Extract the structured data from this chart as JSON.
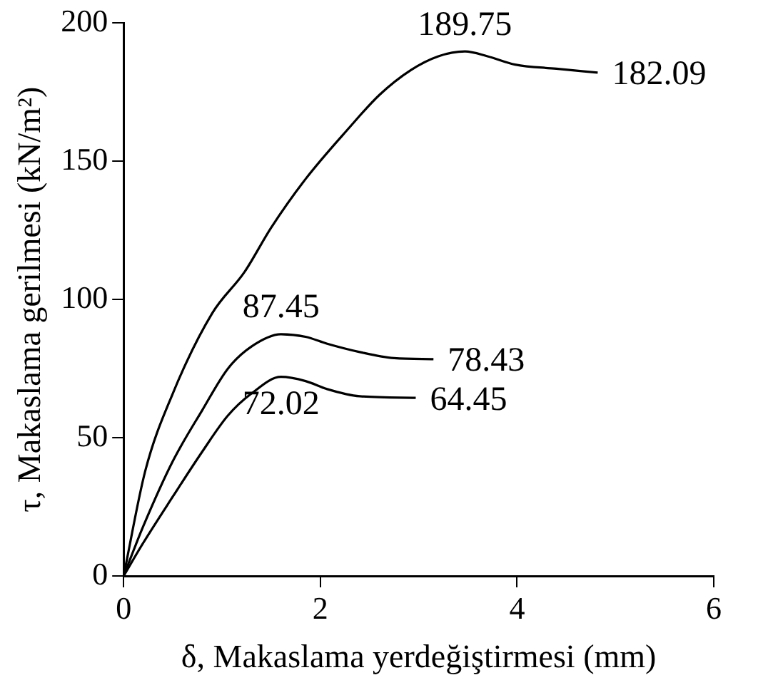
{
  "chart_data": {
    "type": "line",
    "xlabel": "δ, Makaslama yerdeğiştirmesi (mm)",
    "ylabel": "τ, Makaslama gerilmesi (kN/m²)",
    "xlim": [
      0,
      6
    ],
    "xticks": [
      0,
      2,
      4,
      6
    ],
    "ylim": [
      0,
      200
    ],
    "yticks": [
      0,
      50,
      100,
      150,
      200
    ],
    "grid": false,
    "legend": false,
    "marker": "none",
    "line_style": "solid",
    "series": [
      {
        "color": "#000000",
        "x": [
          0,
          0.22,
          0.5,
          0.9,
          1.23,
          1.5,
          1.85,
          2.29,
          2.6,
          2.92,
          3.2,
          3.47,
          3.7,
          3.98,
          4.4,
          4.82
        ],
        "values": [
          0,
          38,
          66,
          95,
          110,
          126,
          143.6,
          162,
          174,
          183,
          188,
          189.75,
          188,
          185,
          183.5,
          182.09
        ]
      },
      {
        "color": "#000000",
        "x": [
          0,
          0.2,
          0.5,
          0.8,
          1.06,
          1.3,
          1.6,
          1.85,
          2.07,
          2.4,
          2.75,
          3.15
        ],
        "values": [
          0,
          18,
          41.5,
          60,
          75,
          83,
          87.45,
          86.5,
          84,
          81,
          78.8,
          78.43
        ]
      },
      {
        "color": "#000000",
        "x": [
          0,
          0.2,
          0.5,
          0.8,
          1.06,
          1.3,
          1.6,
          1.85,
          2.07,
          2.4,
          2.97
        ],
        "values": [
          0,
          12,
          28.7,
          45,
          58,
          66,
          72.02,
          70.5,
          67.6,
          65,
          64.45
        ]
      }
    ],
    "annotations": [
      {
        "text": "189.75",
        "x": 3.47,
        "y": 189.75
      },
      {
        "text": "182.09",
        "x": 4.82,
        "y": 182.09
      },
      {
        "text": "87.45",
        "x": 1.6,
        "y": 87.45
      },
      {
        "text": "78.43",
        "x": 3.15,
        "y": 78.43
      },
      {
        "text": "72.02",
        "x": 1.6,
        "y": 72.02
      },
      {
        "text": "64.45",
        "x": 2.97,
        "y": 64.45
      }
    ]
  }
}
